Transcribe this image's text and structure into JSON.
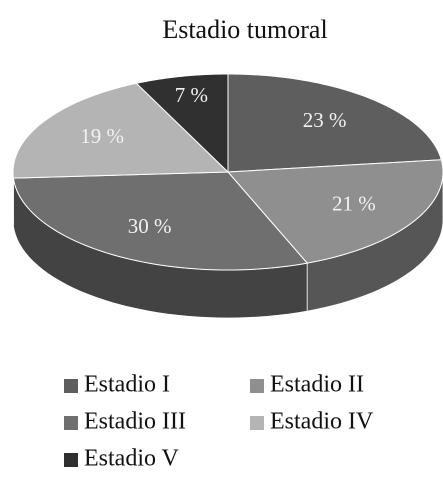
{
  "chart_data": {
    "type": "pie",
    "title": "Estadio tumoral",
    "categories": [
      "Estadio I",
      "Estadio II",
      "Estadio III",
      "Estadio IV",
      "Estadio V"
    ],
    "values": [
      23,
      21,
      30,
      19,
      7
    ],
    "value_labels": [
      "23 %",
      "21 %",
      "30 %",
      "19 %",
      "7 %"
    ],
    "colors": [
      "#5e5e5e",
      "#8f8f8f",
      "#6f6f6f",
      "#b4b4b4",
      "#303030"
    ]
  }
}
